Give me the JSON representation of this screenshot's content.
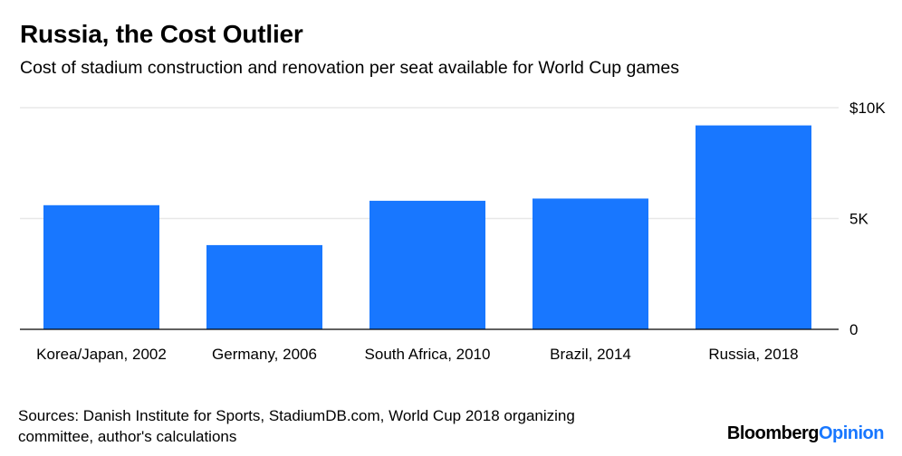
{
  "title": "Russia, the Cost Outlier",
  "subtitle": "Cost of stadium construction and renovation per seat available for World Cup games",
  "source_line1": "Sources: Danish Institute for Sports, StadiumDB.com, World Cup 2018 organizing",
  "source_line2": "committee, author's calculations",
  "brand": {
    "part1": "Bloomberg",
    "part2": "Opinion",
    "accent_color": "#1877ff"
  },
  "colors": {
    "bar": "#1877ff",
    "gridline": "#e8e8e8",
    "baseline": "#000000"
  },
  "chart_data": {
    "type": "bar",
    "categories": [
      "Korea/Japan, 2002",
      "Germany, 2006",
      "South Africa, 2010",
      "Brazil, 2014",
      "Russia, 2018"
    ],
    "values": [
      5600,
      3800,
      5800,
      5900,
      9200
    ],
    "title": "Russia, the Cost Outlier",
    "subtitle": "Cost of stadium construction and renovation per seat available for World Cup games",
    "xlabel": "",
    "ylabel": "",
    "ylim": [
      0,
      10000
    ],
    "yticks": [
      {
        "value": 0,
        "label": "0"
      },
      {
        "value": 5000,
        "label": "5K"
      },
      {
        "value": 10000,
        "label": "$10K"
      }
    ],
    "y_axis_position": "right",
    "grid": true
  }
}
